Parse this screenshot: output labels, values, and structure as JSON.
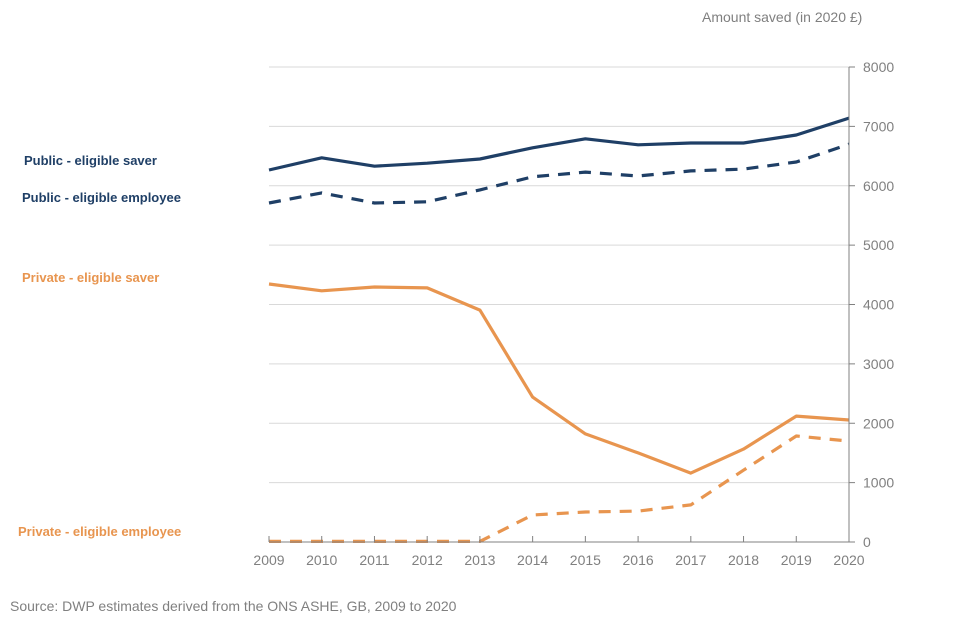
{
  "chart_data": {
    "type": "line",
    "title": "",
    "ylabel": "Amount saved (in 2020 £)",
    "xlabel": "",
    "x": [
      "2009",
      "2010",
      "2011",
      "2012",
      "2013",
      "2014",
      "2015",
      "2016",
      "2017",
      "2018",
      "2019",
      "2020"
    ],
    "ylim": [
      0,
      8000
    ],
    "yticks": [
      "0",
      "1000",
      "2000",
      "3000",
      "4000",
      "5000",
      "6000",
      "7000",
      "8000"
    ],
    "y_axis_side": "right",
    "grid": true,
    "legend": "inline-left",
    "series": [
      {
        "name": "Public - eligible saver",
        "color": "#1f3f66",
        "style": "solid",
        "values": [
          6265,
          6470,
          6330,
          6380,
          6450,
          6640,
          6790,
          6690,
          6720,
          6720,
          6855,
          7140
        ]
      },
      {
        "name": "Public - eligible employee",
        "color": "#1f3f66",
        "style": "dashed",
        "values": [
          5710,
          5880,
          5710,
          5730,
          5930,
          6150,
          6230,
          6165,
          6250,
          6280,
          6400,
          6700
        ]
      },
      {
        "name": "Private - eligible saver",
        "color": "#e8954f",
        "style": "solid",
        "values": [
          4345,
          4230,
          4295,
          4280,
          3905,
          2440,
          1820,
          1500,
          1160,
          1565,
          2120,
          2055
        ]
      },
      {
        "name": "Private - eligible employee",
        "color": "#e8954f",
        "style": "dashed",
        "values": [
          10,
          10,
          10,
          10,
          10,
          455,
          505,
          520,
          625,
          1210,
          1785,
          1700
        ]
      }
    ],
    "source": "Source: DWP estimates derived from the ONS ASHE, GB, 2009 to 2020"
  }
}
